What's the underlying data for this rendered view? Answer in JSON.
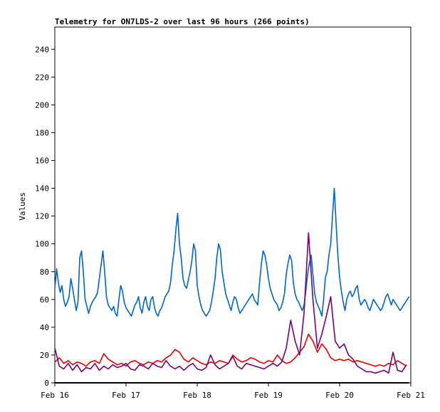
{
  "chart_data": {
    "type": "line",
    "title": "Telemetry for ON7LDS-2 over last 96 hours (266 points)",
    "ylabel": "Values",
    "xlabel": "",
    "x_ticks": [
      "Feb 16",
      "Feb 17",
      "Feb 18",
      "Feb 19",
      "Feb 20",
      "Feb 21"
    ],
    "y_ticks": [
      0,
      20,
      40,
      60,
      80,
      100,
      120,
      140,
      160,
      180,
      200,
      220,
      240
    ],
    "xlim": [
      0,
      4
    ],
    "ylim": [
      0,
      256
    ],
    "grid": false,
    "series": [
      {
        "color": "#0066cc",
        "x": [
          0,
          0.02,
          0.04,
          0.06,
          0.08,
          0.1,
          0.12,
          0.14,
          0.16,
          0.18,
          0.2,
          0.22,
          0.24,
          0.26,
          0.28,
          0.3,
          0.32,
          0.34,
          0.36,
          0.38,
          0.4,
          0.42,
          0.44,
          0.46,
          0.48,
          0.5,
          0.52,
          0.54,
          0.56,
          0.58,
          0.6,
          0.62,
          0.64,
          0.66,
          0.68,
          0.7,
          0.72,
          0.74,
          0.76,
          0.78,
          0.8,
          0.82,
          0.84,
          0.86,
          0.88,
          0.9,
          0.92,
          0.94,
          0.96,
          0.98,
          1.0,
          1.02,
          1.04,
          1.06,
          1.08,
          1.1,
          1.12,
          1.14,
          1.16,
          1.18,
          1.2,
          1.22,
          1.24,
          1.26,
          1.28,
          1.3,
          1.32,
          1.34,
          1.36,
          1.38,
          1.4,
          1.42,
          1.44,
          1.46,
          1.48,
          1.5,
          1.52,
          1.54,
          1.56,
          1.58,
          1.6,
          1.62,
          1.64,
          1.66,
          1.68,
          1.7,
          1.72,
          1.74,
          1.76,
          1.78,
          1.8,
          1.82,
          1.84,
          1.86,
          1.88,
          1.9,
          1.92,
          1.94,
          1.96,
          1.98,
          2.0,
          2.02,
          2.04,
          2.06,
          2.08,
          2.1,
          2.12,
          2.14,
          2.16,
          2.18,
          2.2,
          2.22,
          2.24,
          2.26,
          2.28,
          2.3,
          2.32,
          2.34,
          2.36,
          2.38,
          2.4,
          2.42,
          2.44,
          2.46,
          2.48,
          2.5,
          2.52,
          2.54,
          2.56,
          2.58,
          2.6,
          2.62,
          2.64,
          2.66,
          2.68,
          2.7,
          2.72,
          2.74,
          2.76,
          2.78,
          2.8,
          2.82,
          2.84,
          2.86,
          2.88,
          2.9,
          2.92,
          2.94,
          2.96,
          2.98,
          3.0,
          3.02,
          3.04,
          3.06,
          3.08,
          3.1,
          3.12,
          3.14,
          3.16,
          3.18,
          3.2,
          3.22,
          3.24,
          3.26,
          3.28,
          3.3,
          3.32,
          3.34,
          3.36,
          3.38,
          3.4,
          3.42,
          3.44,
          3.46,
          3.48,
          3.5,
          3.52,
          3.54,
          3.56,
          3.58,
          3.6,
          3.62,
          3.64,
          3.66,
          3.68,
          3.7,
          3.72,
          3.74,
          3.76,
          3.78,
          3.8,
          3.82,
          3.84,
          3.86,
          3.88,
          3.9,
          3.92,
          3.94,
          3.96,
          3.98
        ],
        "values": [
          68,
          82,
          72,
          65,
          70,
          60,
          55,
          58,
          62,
          75,
          68,
          60,
          52,
          58,
          90,
          95,
          80,
          60,
          55,
          50,
          55,
          58,
          60,
          62,
          65,
          75,
          85,
          95,
          80,
          62,
          56,
          54,
          52,
          55,
          50,
          48,
          60,
          70,
          66,
          58,
          54,
          52,
          50,
          48,
          52,
          56,
          58,
          62,
          54,
          50,
          58,
          62,
          55,
          52,
          60,
          62,
          54,
          50,
          48,
          52,
          54,
          58,
          62,
          64,
          66,
          72,
          85,
          95,
          110,
          122,
          100,
          90,
          75,
          70,
          68,
          74,
          80,
          88,
          100,
          95,
          70,
          62,
          56,
          52,
          50,
          48,
          50,
          52,
          58,
          66,
          75,
          90,
          100,
          96,
          80,
          72,
          64,
          60,
          56,
          52,
          58,
          62,
          60,
          54,
          50,
          52,
          54,
          56,
          58,
          60,
          62,
          64,
          60,
          58,
          56,
          72,
          85,
          95,
          92,
          85,
          75,
          68,
          64,
          60,
          58,
          56,
          52,
          54,
          58,
          64,
          78,
          86,
          92,
          88,
          72,
          64,
          60,
          58,
          55,
          52,
          56,
          66,
          78,
          86,
          92,
          78,
          64,
          58,
          55,
          52,
          48,
          60,
          76,
          80,
          92,
          100,
          120,
          140,
          115,
          92,
          76,
          66,
          58,
          52,
          60,
          64,
          66,
          62,
          64,
          68,
          70,
          60,
          56,
          58,
          60,
          58,
          54,
          52,
          56,
          60,
          58,
          56,
          54,
          52,
          54,
          58,
          62,
          64,
          60,
          56,
          60,
          58,
          56,
          54,
          52,
          54,
          56,
          58,
          60,
          62
        ]
      },
      {
        "color": "#ee0000",
        "x": [
          0,
          0.05,
          0.1,
          0.15,
          0.2,
          0.25,
          0.3,
          0.35,
          0.4,
          0.45,
          0.5,
          0.55,
          0.6,
          0.65,
          0.7,
          0.75,
          0.8,
          0.85,
          0.9,
          0.95,
          1.0,
          1.05,
          1.1,
          1.15,
          1.2,
          1.25,
          1.3,
          1.35,
          1.4,
          1.45,
          1.5,
          1.55,
          1.6,
          1.65,
          1.7,
          1.75,
          1.8,
          1.85,
          1.9,
          1.95,
          2.0,
          2.05,
          2.1,
          2.15,
          2.2,
          2.25,
          2.3,
          2.35,
          2.4,
          2.45,
          2.5,
          2.55,
          2.6,
          2.65,
          2.7,
          2.75,
          2.8,
          2.85,
          2.9,
          2.95,
          3.0,
          3.05,
          3.1,
          3.15,
          3.2,
          3.25,
          3.3,
          3.35,
          3.4,
          3.45,
          3.5,
          3.55,
          3.6,
          3.65,
          3.7,
          3.75,
          3.8,
          3.85,
          3.9,
          3.95
        ],
        "values": [
          15,
          18,
          14,
          16,
          13,
          15,
          14,
          12,
          15,
          16,
          14,
          21,
          17,
          15,
          13,
          14,
          12,
          15,
          16,
          14,
          13,
          15,
          14,
          16,
          15,
          18,
          20,
          24,
          22,
          17,
          15,
          18,
          16,
          14,
          13,
          15,
          14,
          16,
          15,
          14,
          20,
          17,
          15,
          16,
          18,
          17,
          15,
          14,
          16,
          15,
          20,
          16,
          14,
          15,
          18,
          22,
          26,
          35,
          30,
          22,
          28,
          24,
          18,
          16,
          17,
          16,
          17,
          15,
          16,
          15,
          14,
          13,
          12,
          13,
          12,
          14,
          13,
          16,
          14,
          12
        ]
      },
      {
        "color": "#770077",
        "x": [
          0,
          0.05,
          0.1,
          0.15,
          0.2,
          0.25,
          0.3,
          0.35,
          0.4,
          0.45,
          0.5,
          0.55,
          0.6,
          0.65,
          0.7,
          0.75,
          0.8,
          0.85,
          0.9,
          0.95,
          1.0,
          1.05,
          1.1,
          1.15,
          1.2,
          1.25,
          1.3,
          1.35,
          1.4,
          1.45,
          1.5,
          1.55,
          1.6,
          1.65,
          1.7,
          1.75,
          1.8,
          1.85,
          1.9,
          1.95,
          2.0,
          2.05,
          2.1,
          2.15,
          2.2,
          2.25,
          2.3,
          2.35,
          2.4,
          2.45,
          2.5,
          2.55,
          2.6,
          2.65,
          2.7,
          2.75,
          2.8,
          2.85,
          2.9,
          2.95,
          3.0,
          3.05,
          3.1,
          3.15,
          3.2,
          3.25,
          3.3,
          3.35,
          3.4,
          3.45,
          3.5,
          3.55,
          3.6,
          3.65,
          3.7,
          3.75,
          3.8,
          3.85,
          3.9,
          3.95
        ],
        "values": [
          25,
          12,
          10,
          14,
          9,
          13,
          8,
          11,
          10,
          14,
          9,
          12,
          10,
          13,
          11,
          12,
          14,
          10,
          9,
          13,
          12,
          10,
          14,
          12,
          11,
          16,
          12,
          10,
          12,
          9,
          12,
          14,
          10,
          9,
          11,
          20,
          13,
          10,
          12,
          14,
          19,
          12,
          10,
          14,
          13,
          12,
          11,
          10,
          12,
          14,
          12,
          15,
          25,
          45,
          30,
          20,
          50,
          108,
          60,
          25,
          35,
          48,
          62,
          30,
          25,
          28,
          20,
          17,
          12,
          10,
          8,
          8,
          7,
          8,
          9,
          7,
          22,
          9,
          8,
          13
        ]
      },
      {
        "color": "#000000",
        "x": [
          0,
          0.5,
          1.0,
          1.5,
          2.0,
          2.5,
          3.0,
          3.5,
          3.98
        ],
        "values": [
          0,
          0,
          0,
          0,
          0,
          0,
          0,
          0,
          0
        ]
      }
    ]
  }
}
